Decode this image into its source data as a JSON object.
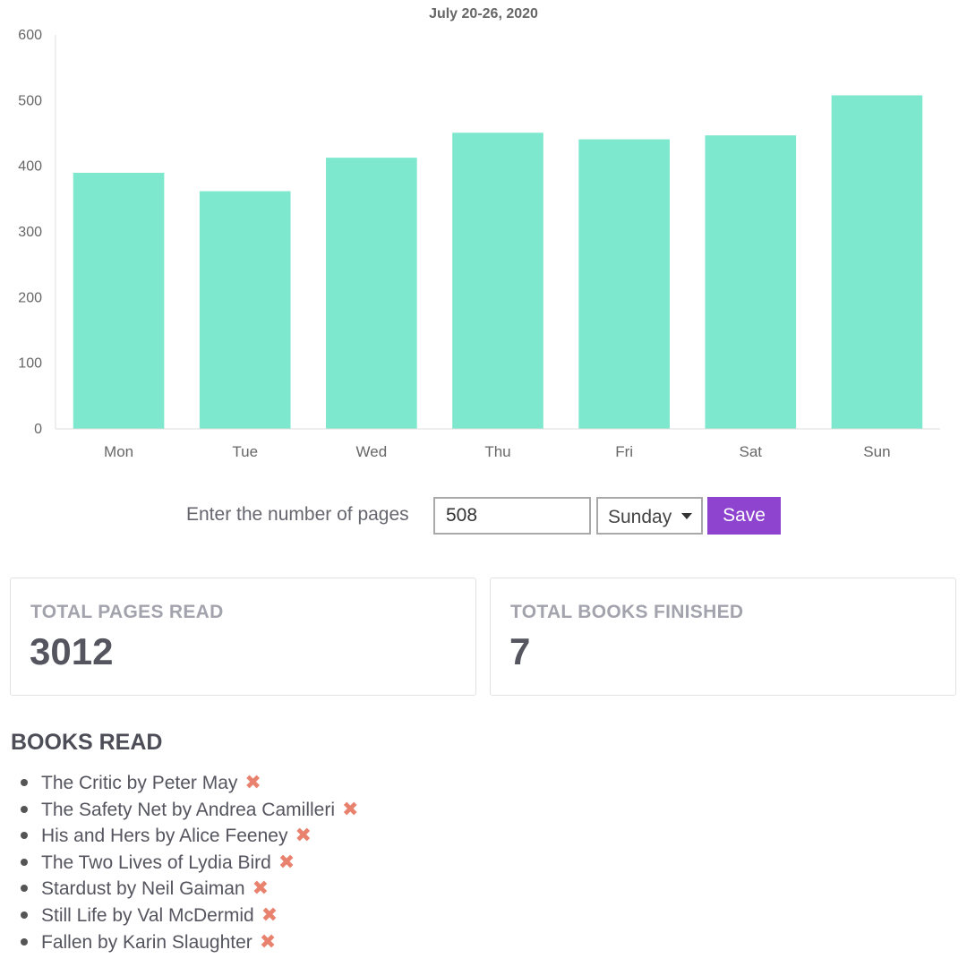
{
  "chart_data": {
    "type": "bar",
    "title": "July 20-26, 2020",
    "categories": [
      "Mon",
      "Tue",
      "Wed",
      "Thu",
      "Fri",
      "Sat",
      "Sun"
    ],
    "values": [
      390,
      362,
      413,
      451,
      441,
      447,
      508
    ],
    "ylim": [
      0,
      600
    ],
    "yticks": [
      0,
      100,
      200,
      300,
      400,
      500,
      600
    ],
    "grid": false,
    "bar_color": "#7de8cd",
    "xlabel": "",
    "ylabel": ""
  },
  "form": {
    "label": "Enter the number of pages",
    "pages_value": "508",
    "selected_day": "Sunday",
    "save_label": "Save",
    "save_color": "#8e44cf"
  },
  "stats": {
    "total_pages_label": "TOTAL PAGES READ",
    "total_pages_value": "3012",
    "total_books_label": "TOTAL BOOKS FINISHED",
    "total_books_value": "7"
  },
  "books": {
    "heading": "BOOKS READ",
    "remove_icon": "x-icon",
    "remove_color": "#e8826e",
    "items": [
      "The Critic by Peter May",
      "The Safety Net by Andrea Camilleri",
      "His and Hers by Alice Feeney",
      "The Two Lives of Lydia Bird",
      "Stardust by Neil Gaiman",
      "Still Life by Val McDermid",
      "Fallen by Karin Slaughter"
    ]
  }
}
